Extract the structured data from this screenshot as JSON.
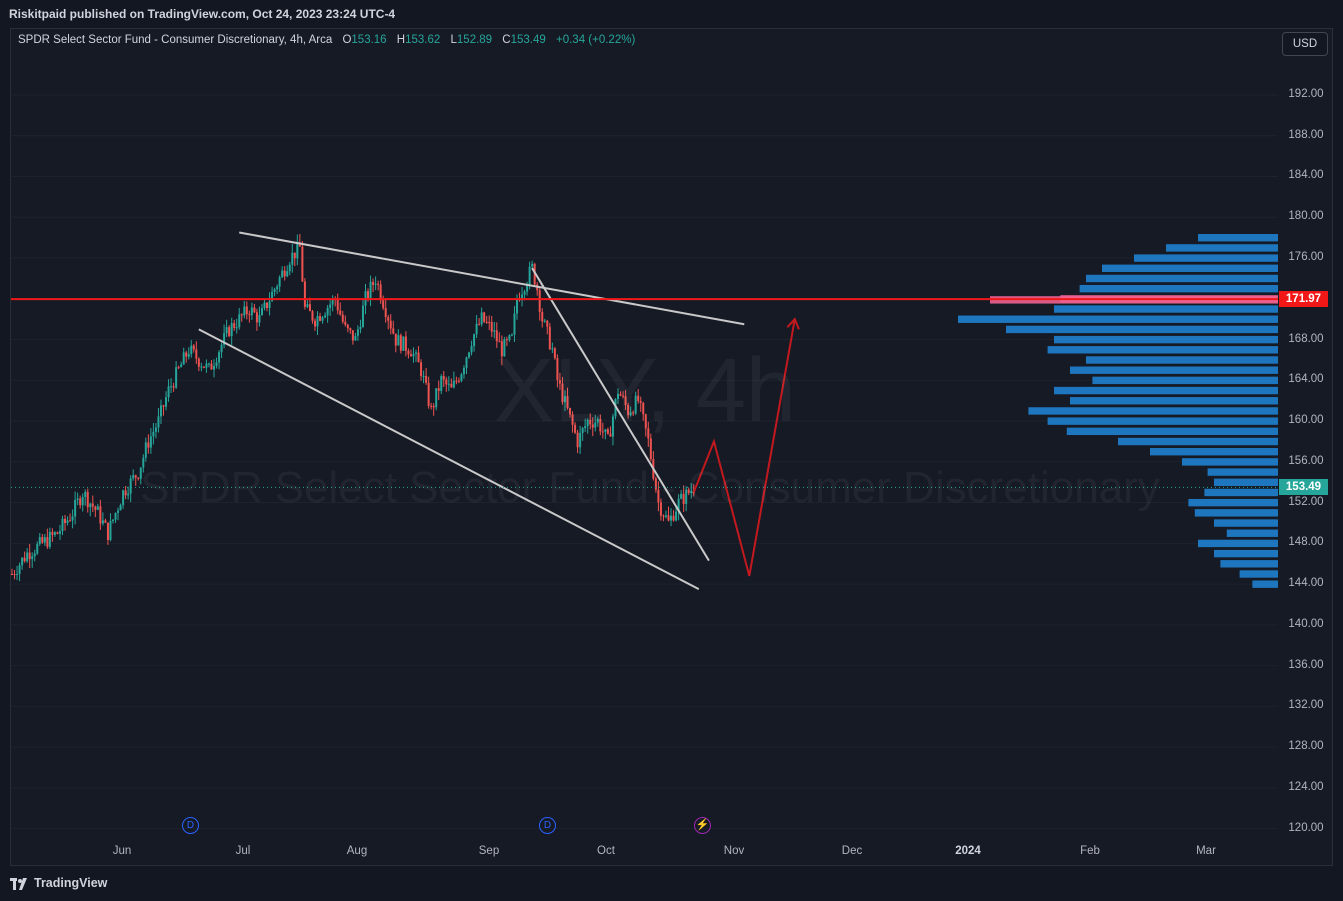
{
  "header": {
    "published": "Riskitpaid published on TradingView.com, Oct 24, 2023 23:24 UTC-4"
  },
  "legend": {
    "title": "SPDR Select Sector Fund - Consumer Discretionary, 4h, Arca",
    "o_label": "O",
    "o_value": "153.16",
    "h_label": "H",
    "h_value": "153.62",
    "l_label": "L",
    "l_value": "152.89",
    "c_label": "C",
    "c_value": "153.49",
    "change": "+0.34 (+0.22%)"
  },
  "currency_button": "USD",
  "watermark": {
    "symbol": "XLY, 4h",
    "description": "SPDR Select Sector Fund - Consumer Discretionary"
  },
  "price_labels": [
    "192.00",
    "188.00",
    "184.00",
    "180.00",
    "176.00",
    "172.00",
    "168.00",
    "164.00",
    "160.00",
    "156.00",
    "152.00",
    "148.00",
    "144.00",
    "140.00",
    "136.00",
    "132.00",
    "128.00",
    "124.00",
    "120.00"
  ],
  "price_tags": {
    "level": "171.97",
    "last": "153.49"
  },
  "time_labels": [
    "Jun",
    "Jul",
    "Aug",
    "Sep",
    "Oct",
    "Nov",
    "Dec",
    "2024",
    "Feb",
    "Mar"
  ],
  "events": {
    "dividend": "D",
    "earnings": "⚡"
  },
  "footer": {
    "brand": "TradingView"
  },
  "colors": {
    "up": "#26a69a",
    "down": "#ef5350",
    "level": "#f21818",
    "trendline": "#c9c9c9",
    "projection": "#c2191f",
    "volume_profile": "#2196f3",
    "volume_profile_hi": "#f06292"
  },
  "chart_data": {
    "type": "candlestick",
    "ylim": [
      118,
      196
    ],
    "horizontal_levels": [
      171.97
    ],
    "last_price": 153.49,
    "price_path": [
      [
        0,
        145
      ],
      [
        3,
        147
      ],
      [
        6,
        148
      ],
      [
        9,
        149
      ],
      [
        12,
        151
      ],
      [
        14,
        153
      ],
      [
        17,
        151
      ],
      [
        19,
        149
      ],
      [
        22,
        153
      ],
      [
        25,
        155
      ],
      [
        27,
        158
      ],
      [
        29,
        160
      ],
      [
        31,
        163
      ],
      [
        33,
        165
      ],
      [
        35,
        167
      ],
      [
        37,
        166
      ],
      [
        39,
        165
      ],
      [
        41,
        167
      ],
      [
        43,
        169
      ],
      [
        45,
        170
      ],
      [
        47,
        171
      ],
      [
        49,
        170
      ],
      [
        51,
        172
      ],
      [
        53,
        174
      ],
      [
        55,
        176
      ],
      [
        57,
        177
      ],
      [
        58,
        171
      ],
      [
        60,
        170
      ],
      [
        62,
        171
      ],
      [
        64,
        172
      ],
      [
        66,
        169
      ],
      [
        68,
        168
      ],
      [
        70,
        172
      ],
      [
        72,
        174
      ],
      [
        74,
        171
      ],
      [
        76,
        168
      ],
      [
        79,
        167
      ],
      [
        81,
        165
      ],
      [
        83,
        161
      ],
      [
        85,
        164
      ],
      [
        87,
        163
      ],
      [
        89,
        165
      ],
      [
        91,
        168
      ],
      [
        93,
        170
      ],
      [
        95,
        169
      ],
      [
        97,
        167
      ],
      [
        99,
        168
      ],
      [
        100,
        172
      ],
      [
        102,
        174
      ],
      [
        103,
        175
      ],
      [
        104,
        173
      ],
      [
        105,
        170
      ],
      [
        107,
        167
      ],
      [
        108,
        164
      ],
      [
        110,
        161
      ],
      [
        112,
        158
      ],
      [
        114,
        160
      ],
      [
        116,
        160
      ],
      [
        118,
        158
      ],
      [
        120,
        163
      ],
      [
        122,
        161
      ],
      [
        124,
        162
      ],
      [
        126,
        158
      ],
      [
        127,
        155
      ],
      [
        128,
        152
      ],
      [
        130,
        150
      ],
      [
        132,
        152
      ],
      [
        134,
        153
      ],
      [
        135,
        153.49
      ]
    ],
    "volume_profile": {
      "description": "horizontal volume-by-price histogram anchored to right edge",
      "bins": [
        [
          178,
          0.25
        ],
        [
          177,
          0.35
        ],
        [
          176,
          0.45
        ],
        [
          175,
          0.55
        ],
        [
          174,
          0.6
        ],
        [
          173,
          0.62
        ],
        [
          172,
          0.68
        ],
        [
          171.9,
          0.9
        ],
        [
          171,
          0.7
        ],
        [
          170,
          1.0
        ],
        [
          169,
          0.85
        ],
        [
          168,
          0.7
        ],
        [
          167,
          0.72
        ],
        [
          166,
          0.6
        ],
        [
          165,
          0.65
        ],
        [
          164,
          0.58
        ],
        [
          163,
          0.7
        ],
        [
          162,
          0.65
        ],
        [
          161,
          0.78
        ],
        [
          160,
          0.72
        ],
        [
          159,
          0.66
        ],
        [
          158,
          0.5
        ],
        [
          157,
          0.4
        ],
        [
          156,
          0.3
        ],
        [
          155,
          0.22
        ],
        [
          154,
          0.2
        ],
        [
          153,
          0.23
        ],
        [
          152,
          0.28
        ],
        [
          151,
          0.26
        ],
        [
          150,
          0.2
        ],
        [
          149,
          0.16
        ],
        [
          148,
          0.25
        ],
        [
          147,
          0.2
        ],
        [
          146,
          0.18
        ],
        [
          145,
          0.12
        ],
        [
          144,
          0.08
        ]
      ]
    },
    "trendlines": {
      "upper_channel": [
        [
          45,
          178.5
        ],
        [
          145,
          169.5
        ]
      ],
      "lower_channel": [
        [
          37,
          169
        ],
        [
          136,
          143.5
        ]
      ],
      "falling_line": [
        [
          103,
          175
        ],
        [
          138,
          146.3
        ]
      ]
    },
    "projection": [
      [
        135,
        153
      ],
      [
        139,
        158
      ],
      [
        146,
        144.8
      ],
      [
        155,
        170
      ]
    ]
  }
}
